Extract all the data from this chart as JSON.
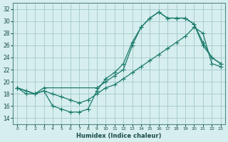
{
  "xlabel": "Humidex (Indice chaleur)",
  "bg_color": "#d6eeee",
  "grid_color": "#aacccc",
  "line_color": "#1a7a6a",
  "xlim": [
    -0.5,
    23.5
  ],
  "ylim": [
    13,
    33
  ],
  "yticks": [
    14,
    16,
    18,
    20,
    22,
    24,
    26,
    28,
    30,
    32
  ],
  "xticks": [
    0,
    1,
    2,
    3,
    4,
    5,
    6,
    7,
    8,
    9,
    10,
    11,
    12,
    13,
    14,
    15,
    16,
    17,
    18,
    19,
    20,
    21,
    22,
    23
  ],
  "line1_x": [
    0,
    1,
    2,
    3,
    4,
    5,
    6,
    7,
    8,
    9,
    10,
    11,
    12,
    13,
    14,
    15,
    16,
    17,
    18,
    19,
    20,
    21,
    22,
    23
  ],
  "line1_y": [
    19,
    18,
    18,
    18.5,
    16,
    15.5,
    15,
    15,
    15.5,
    18.5,
    20.5,
    21.5,
    23,
    26.5,
    29,
    30.5,
    31.5,
    30.5,
    30.5,
    30.5,
    29.5,
    26.5,
    24,
    23
  ],
  "line2_x": [
    0,
    1,
    2,
    3,
    4,
    5,
    6,
    7,
    8,
    9,
    10,
    11,
    12,
    13,
    14,
    15,
    16,
    17,
    18,
    19,
    20,
    21,
    22,
    23
  ],
  "line2_y": [
    19,
    18.5,
    18,
    18.5,
    18,
    17.5,
    17,
    16.5,
    17,
    18,
    19,
    19.5,
    20.5,
    21.5,
    22.5,
    23.5,
    24.5,
    25.5,
    26.5,
    27.5,
    29,
    28,
    23,
    22.5
  ],
  "line3_x": [
    0,
    2,
    3,
    9,
    10,
    11,
    12,
    13,
    14,
    15,
    16,
    17,
    18,
    19,
    20,
    21,
    22,
    23
  ],
  "line3_y": [
    19,
    18,
    19,
    19,
    20,
    21,
    22,
    26,
    29,
    30.5,
    31.5,
    30.5,
    30.5,
    30.5,
    29.5,
    26,
    24,
    23
  ]
}
